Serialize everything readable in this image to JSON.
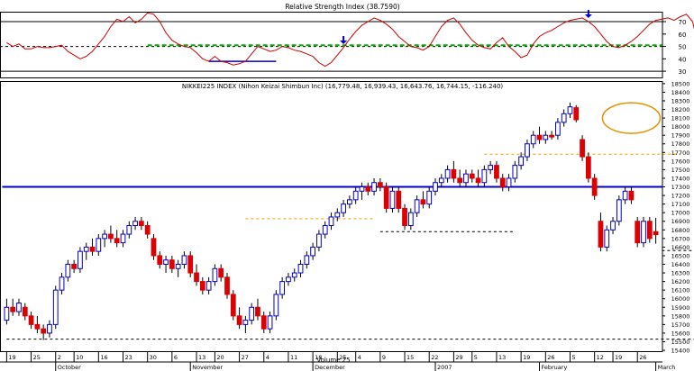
{
  "chart_data": [
    {
      "type": "line",
      "title": "Relative Strength Index (38.7590)",
      "ylim": [
        25,
        78
      ],
      "y_ticks": [
        30,
        40,
        50,
        60,
        70
      ],
      "reference_levels": [
        30,
        50,
        70
      ],
      "series": [
        {
          "values": [
            53,
            50,
            52,
            48,
            48,
            50,
            49,
            49,
            50,
            51,
            46,
            43,
            40,
            42,
            46,
            52,
            58,
            66,
            72,
            70,
            74,
            69,
            72,
            77,
            76,
            70,
            61,
            55,
            52,
            50,
            49,
            45,
            40,
            38,
            42,
            38,
            37,
            35,
            36,
            38,
            44,
            50,
            48,
            46,
            47,
            50,
            49,
            47,
            46,
            44,
            42,
            37,
            34,
            37,
            43,
            49,
            56,
            62,
            67,
            70,
            73,
            71,
            68,
            64,
            58,
            54,
            50,
            49,
            47,
            50,
            58,
            66,
            71,
            73,
            68,
            61,
            55,
            51,
            49,
            48,
            53,
            57,
            50,
            46,
            41,
            43,
            52,
            58,
            61,
            63,
            66,
            69,
            71,
            72,
            73,
            70,
            66,
            60,
            54,
            50,
            49,
            51,
            54,
            58,
            63,
            68,
            71,
            72,
            73,
            71,
            74,
            76,
            70,
            50,
            38,
            32,
            29,
            34,
            41,
            45,
            47,
            43,
            40,
            39
          ]
        }
      ],
      "annotations": {
        "down_arrows": [
          55,
          95
        ],
        "green_dashed_line": {
          "x_range": [
            23,
            107
          ],
          "y": 51
        },
        "blue_support_line": {
          "x_range": [
            33,
            44
          ],
          "y": 38
        }
      }
    },
    {
      "type": "candlestick",
      "title": "NIKKEI225 INDEX (Nihon Keizai Shimbun Inc) (16,779.48, 16,939.43, 16,643.76, 16,744.15, -116.240)",
      "ylim": [
        15390,
        18530
      ],
      "y_ticks": [
        15400,
        15500,
        15600,
        15700,
        15800,
        15900,
        16000,
        16100,
        16200,
        16300,
        16400,
        16500,
        16600,
        16700,
        16800,
        16900,
        17000,
        17100,
        17200,
        17300,
        17400,
        17500,
        17600,
        17700,
        17800,
        17900,
        18000,
        18100,
        18200,
        18300,
        18400,
        18500
      ],
      "x_tick_labels": [
        "19",
        "25",
        "2",
        "10",
        "16",
        "23",
        "30",
        "6",
        "13",
        "20",
        "27",
        "4",
        "11",
        "18",
        "25",
        "4",
        "9",
        "15",
        "22",
        "29",
        "5",
        "13",
        "19",
        "26",
        "5",
        "12",
        "19",
        "26"
      ],
      "month_labels": [
        "October",
        "November",
        "December",
        "2007",
        "February",
        "March"
      ],
      "axis_note": "Volume 25",
      "candles": [
        [
          15750,
          16000,
          15700,
          15900,
          1
        ],
        [
          15900,
          16000,
          15800,
          15850,
          0
        ],
        [
          15850,
          16000,
          15800,
          15950,
          1
        ],
        [
          15900,
          15950,
          15750,
          15800,
          0
        ],
        [
          15800,
          15850,
          15650,
          15700,
          0
        ],
        [
          15700,
          15800,
          15600,
          15650,
          0
        ],
        [
          15650,
          15700,
          15520,
          15600,
          0
        ],
        [
          15600,
          15750,
          15550,
          15700,
          1
        ],
        [
          15700,
          16150,
          15650,
          16100,
          1
        ],
        [
          16100,
          16300,
          16050,
          16250,
          1
        ],
        [
          16250,
          16450,
          16200,
          16400,
          1
        ],
        [
          16400,
          16450,
          16300,
          16350,
          0
        ],
        [
          16350,
          16600,
          16300,
          16550,
          1
        ],
        [
          16550,
          16650,
          16450,
          16600,
          1
        ],
        [
          16600,
          16700,
          16500,
          16550,
          0
        ],
        [
          16550,
          16750,
          16500,
          16700,
          1
        ],
        [
          16700,
          16800,
          16600,
          16750,
          1
        ],
        [
          16750,
          16850,
          16650,
          16700,
          0
        ],
        [
          16700,
          16800,
          16600,
          16650,
          0
        ],
        [
          16650,
          16800,
          16600,
          16750,
          1
        ],
        [
          16750,
          16900,
          16700,
          16850,
          1
        ],
        [
          16850,
          16950,
          16800,
          16900,
          1
        ],
        [
          16900,
          16950,
          16800,
          16850,
          0
        ],
        [
          16850,
          16900,
          16700,
          16750,
          0
        ],
        [
          16700,
          16750,
          16450,
          16500,
          0
        ],
        [
          16500,
          16550,
          16350,
          16400,
          0
        ],
        [
          16400,
          16500,
          16300,
          16450,
          1
        ],
        [
          16450,
          16500,
          16300,
          16350,
          0
        ],
        [
          16350,
          16450,
          16250,
          16400,
          1
        ],
        [
          16400,
          16550,
          16350,
          16500,
          1
        ],
        [
          16500,
          16550,
          16250,
          16300,
          0
        ],
        [
          16300,
          16400,
          16150,
          16200,
          0
        ],
        [
          16200,
          16250,
          16050,
          16100,
          0
        ],
        [
          16100,
          16250,
          16050,
          16200,
          1
        ],
        [
          16200,
          16400,
          16150,
          16350,
          1
        ],
        [
          16350,
          16400,
          16200,
          16250,
          0
        ],
        [
          16250,
          16300,
          16000,
          16050,
          0
        ],
        [
          16050,
          16100,
          15750,
          15800,
          0
        ],
        [
          15800,
          15900,
          15650,
          15700,
          0
        ],
        [
          15700,
          15800,
          15600,
          15750,
          1
        ],
        [
          15750,
          15950,
          15700,
          15900,
          1
        ],
        [
          15900,
          16000,
          15750,
          15800,
          0
        ],
        [
          15800,
          15850,
          15600,
          15650,
          0
        ],
        [
          15650,
          15850,
          15600,
          15800,
          1
        ],
        [
          15800,
          16100,
          15750,
          16050,
          1
        ],
        [
          16050,
          16250,
          16000,
          16200,
          1
        ],
        [
          16200,
          16300,
          16150,
          16250,
          1
        ],
        [
          16250,
          16350,
          16200,
          16300,
          1
        ],
        [
          16300,
          16450,
          16250,
          16400,
          1
        ],
        [
          16400,
          16550,
          16350,
          16500,
          1
        ],
        [
          16500,
          16650,
          16450,
          16600,
          1
        ],
        [
          16600,
          16800,
          16550,
          16750,
          1
        ],
        [
          16750,
          16900,
          16700,
          16850,
          1
        ],
        [
          16850,
          17000,
          16800,
          16950,
          1
        ],
        [
          16950,
          17050,
          16900,
          17000,
          1
        ],
        [
          17000,
          17150,
          16950,
          17100,
          1
        ],
        [
          17100,
          17200,
          17050,
          17150,
          1
        ],
        [
          17150,
          17300,
          17100,
          17250,
          1
        ],
        [
          17250,
          17350,
          17150,
          17300,
          1
        ],
        [
          17300,
          17350,
          17200,
          17250,
          0
        ],
        [
          17250,
          17400,
          17200,
          17350,
          1
        ],
        [
          17350,
          17400,
          17250,
          17300,
          0
        ],
        [
          17300,
          17350,
          17000,
          17050,
          0
        ],
        [
          17050,
          17300,
          17000,
          17250,
          1
        ],
        [
          17250,
          17300,
          17000,
          17050,
          0
        ],
        [
          17050,
          17100,
          16800,
          16850,
          0
        ],
        [
          16850,
          17050,
          16800,
          17000,
          1
        ],
        [
          17000,
          17200,
          16950,
          17150,
          1
        ],
        [
          17150,
          17250,
          17050,
          17100,
          0
        ],
        [
          17100,
          17300,
          17050,
          17250,
          1
        ],
        [
          17250,
          17400,
          17200,
          17350,
          1
        ],
        [
          17350,
          17450,
          17300,
          17400,
          1
        ],
        [
          17400,
          17550,
          17350,
          17500,
          1
        ],
        [
          17500,
          17600,
          17350,
          17400,
          0
        ],
        [
          17400,
          17500,
          17300,
          17350,
          0
        ],
        [
          17350,
          17500,
          17300,
          17450,
          1
        ],
        [
          17450,
          17500,
          17350,
          17400,
          0
        ],
        [
          17400,
          17500,
          17300,
          17350,
          0
        ],
        [
          17350,
          17550,
          17300,
          17500,
          1
        ],
        [
          17500,
          17600,
          17450,
          17550,
          1
        ],
        [
          17550,
          17600,
          17350,
          17400,
          0
        ],
        [
          17400,
          17450,
          17250,
          17300,
          0
        ],
        [
          17300,
          17450,
          17250,
          17400,
          1
        ],
        [
          17400,
          17600,
          17350,
          17550,
          1
        ],
        [
          17550,
          17700,
          17500,
          17650,
          1
        ],
        [
          17650,
          17850,
          17600,
          17800,
          1
        ],
        [
          17800,
          17950,
          17750,
          17900,
          1
        ],
        [
          17900,
          18000,
          17800,
          17850,
          0
        ],
        [
          17850,
          17950,
          17800,
          17900,
          1
        ],
        [
          17900,
          17950,
          17850,
          17880,
          0
        ],
        [
          17900,
          18100,
          17850,
          18050,
          1
        ],
        [
          18050,
          18200,
          18000,
          18150,
          1
        ],
        [
          18150,
          18280,
          18100,
          18230,
          1
        ],
        [
          18220,
          18250,
          18050,
          18080,
          0
        ],
        [
          17850,
          17900,
          17600,
          17650,
          0
        ],
        [
          17650,
          17700,
          17350,
          17400,
          0
        ],
        [
          17400,
          17450,
          17150,
          17200,
          0
        ],
        [
          16900,
          17000,
          16550,
          16600,
          0
        ],
        [
          16600,
          16850,
          16550,
          16800,
          1
        ],
        [
          16800,
          16950,
          16750,
          16900,
          1
        ],
        [
          16900,
          17200,
          16850,
          17150,
          1
        ],
        [
          17150,
          17300,
          17100,
          17250,
          1
        ],
        [
          17250,
          17300,
          17100,
          17150,
          0
        ],
        [
          16900,
          16950,
          16600,
          16650,
          0
        ],
        [
          16650,
          16950,
          16600,
          16900,
          1
        ],
        [
          16900,
          16950,
          16650,
          16700,
          0
        ],
        [
          16780,
          16940,
          16640,
          16744,
          0
        ]
      ],
      "annotations": {
        "resistance_line": {
          "x_range": [
            0,
            123
          ],
          "y": 17300
        },
        "dashed_levels": [
          {
            "x_range": [
              0,
              123
            ],
            "y": 15530
          },
          {
            "x_range": [
              39,
              60
            ],
            "y": 16930
          },
          {
            "x_range": [
              61,
              83
            ],
            "y": 16780
          },
          {
            "x_range": [
              78,
              110
            ],
            "y": 17680
          },
          {
            "x_range": [
              107,
              123
            ],
            "y": 16560
          }
        ],
        "highlight_ellipse": {
          "x": 102,
          "y": 18100
        }
      }
    }
  ]
}
